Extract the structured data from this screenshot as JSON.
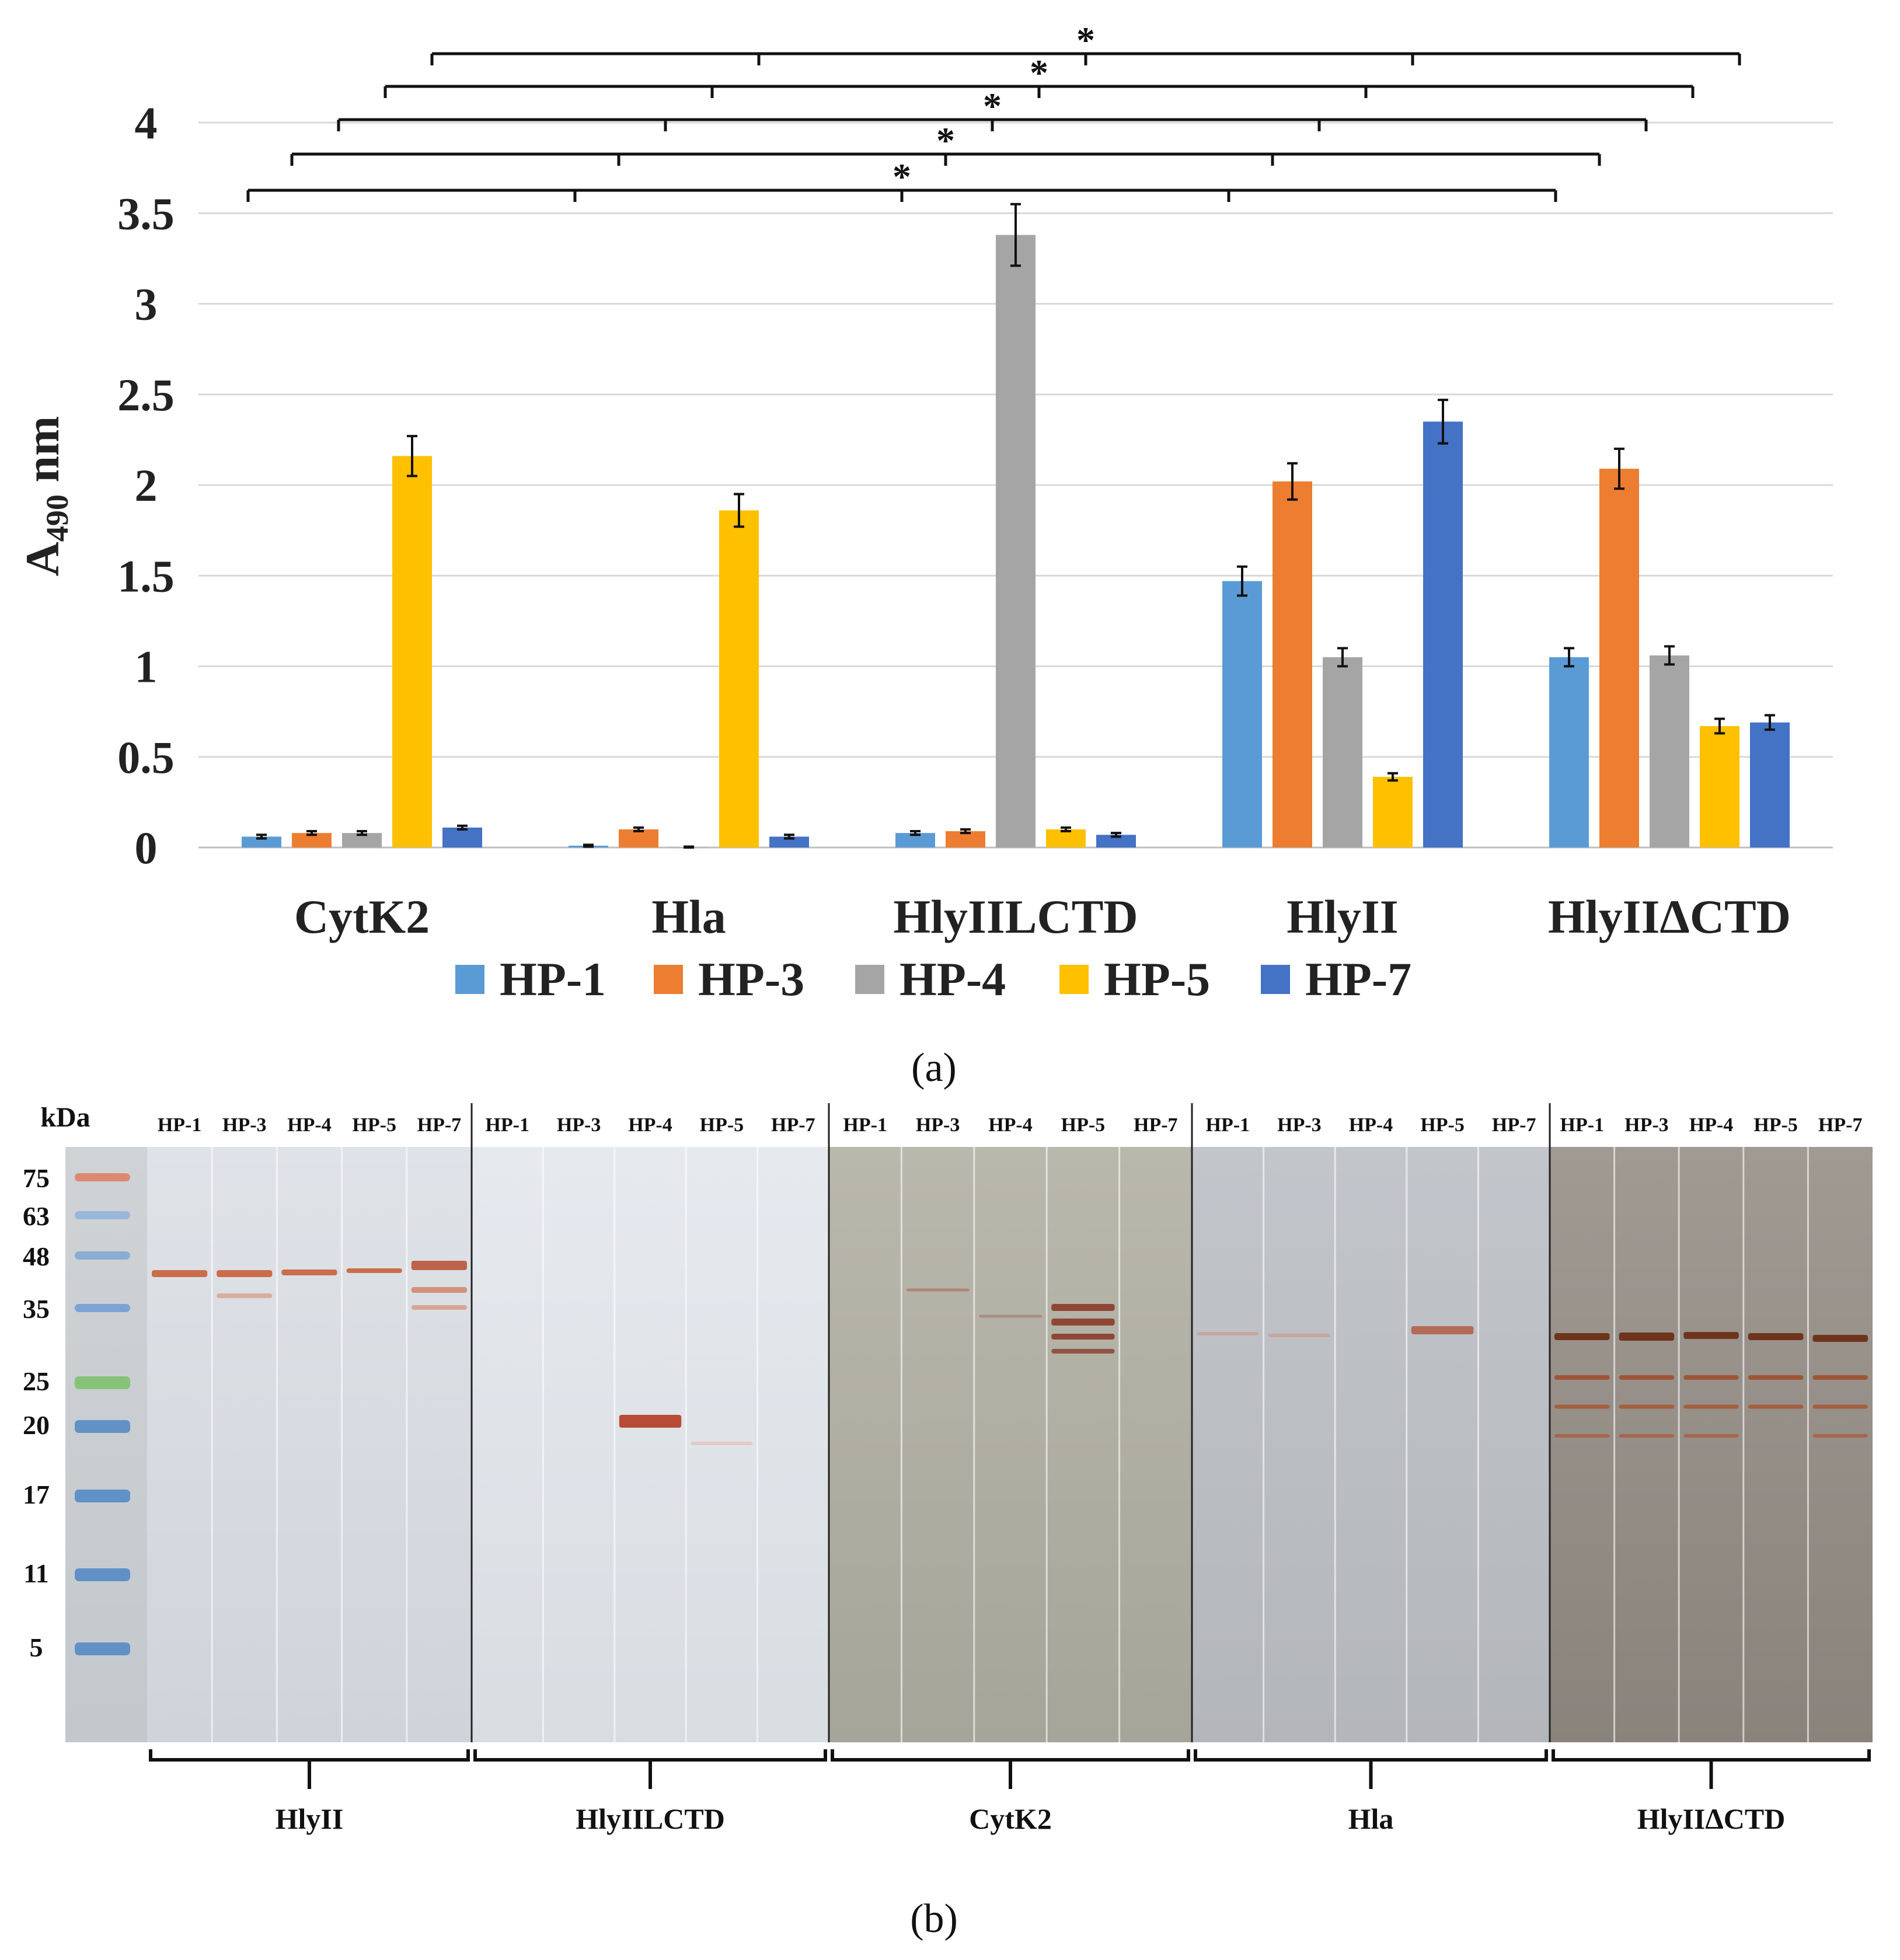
{
  "panel_a": {
    "label": "(a)",
    "chart_data": {
      "type": "bar",
      "title": "",
      "xlabel": "",
      "ylabel_main": "A",
      "ylabel_sub": "490",
      "ylabel_unit": " nm",
      "ylim": [
        0,
        4
      ],
      "yticks": [
        0,
        0.5,
        1,
        1.5,
        2,
        2.5,
        3,
        3.5,
        4
      ],
      "ytick_labels": [
        "0",
        "0.5",
        "1",
        "1.5",
        "2",
        "2.5",
        "3",
        "3.5",
        "4"
      ],
      "categories": [
        "CytK2",
        "Hla",
        "HlyIILCTD",
        "HlyII",
        "HlyIIΔCTD"
      ],
      "series": [
        {
          "name": "HP-1",
          "color": "#5b9bd5",
          "values": [
            0.06,
            0.01,
            0.08,
            1.47,
            1.05
          ],
          "errors": [
            0.01,
            0.005,
            0.01,
            0.08,
            0.05
          ]
        },
        {
          "name": "HP-3",
          "color": "#ed7d31",
          "values": [
            0.08,
            0.1,
            0.09,
            2.02,
            2.09
          ],
          "errors": [
            0.01,
            0.01,
            0.01,
            0.1,
            0.11
          ]
        },
        {
          "name": "HP-4",
          "color": "#a5a5a5",
          "values": [
            0.08,
            0.0,
            3.38,
            1.05,
            1.06
          ],
          "errors": [
            0.01,
            0.005,
            0.17,
            0.05,
            0.05
          ]
        },
        {
          "name": "HP-5",
          "color": "#ffc000",
          "values": [
            2.16,
            1.86,
            0.1,
            0.39,
            0.67
          ],
          "errors": [
            0.11,
            0.09,
            0.01,
            0.02,
            0.04
          ]
        },
        {
          "name": "HP-7",
          "color": "#4472c4",
          "values": [
            0.11,
            0.06,
            0.07,
            2.35,
            0.69
          ],
          "errors": [
            0.01,
            0.01,
            0.01,
            0.12,
            0.04
          ]
        }
      ],
      "significance": [
        {
          "bracket_index": 0,
          "label": "*"
        },
        {
          "bracket_index": 1,
          "label": "*"
        },
        {
          "bracket_index": 2,
          "label": "*"
        },
        {
          "bracket_index": 3,
          "label": "*"
        },
        {
          "bracket_index": 4,
          "label": "*"
        }
      ],
      "legend": "bottom"
    }
  },
  "panel_b": {
    "label": "(b)",
    "unit_label": "kDa",
    "marker_values": [
      "75",
      "63",
      "48",
      "35",
      "25",
      "20",
      "17",
      "11",
      "5"
    ],
    "groups": [
      {
        "name": "HlyII",
        "lanes": [
          "HP-1",
          "HP-3",
          "HP-4",
          "HP-5",
          "HP-7"
        ]
      },
      {
        "name": "HlyIILCTD",
        "lanes": [
          "HP-1",
          "HP-3",
          "HP-4",
          "HP-5",
          "HP-7"
        ]
      },
      {
        "name": "CytK2",
        "lanes": [
          "HP-1",
          "HP-3",
          "HP-4",
          "HP-5",
          "HP-7"
        ]
      },
      {
        "name": "Hla",
        "lanes": [
          "HP-1",
          "HP-3",
          "HP-4",
          "HP-5",
          "HP-7"
        ]
      },
      {
        "name": "HlyIIΔCTD",
        "lanes": [
          "HP-1",
          "HP-3",
          "HP-4",
          "HP-5",
          "HP-7"
        ]
      }
    ]
  }
}
